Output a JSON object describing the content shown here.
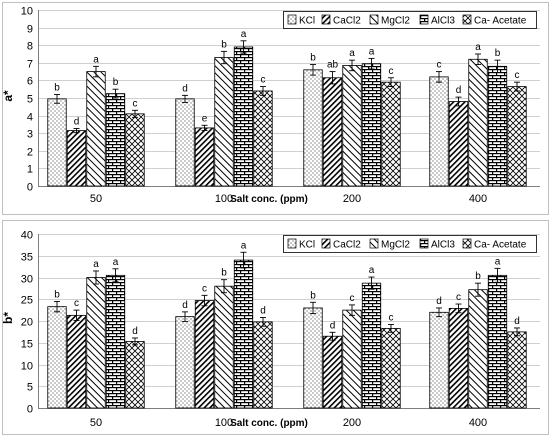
{
  "chart_data": [
    {
      "type": "bar",
      "ylabel": "a*",
      "xlabel": "Salt conc. (ppm)",
      "categories": [
        "50",
        "100",
        "200",
        "400"
      ],
      "ylim": [
        0,
        10
      ],
      "yticks": [
        0,
        1,
        2,
        3,
        4,
        5,
        6,
        7,
        8,
        9,
        10
      ],
      "legend_position": "top-right",
      "series": [
        {
          "name": "KCl",
          "pattern": "dots",
          "values": [
            4.95,
            4.95,
            6.6,
            6.2
          ],
          "errors": [
            0.25,
            0.2,
            0.3,
            0.3
          ],
          "letters": [
            "b",
            "d",
            "b",
            "c"
          ]
        },
        {
          "name": "CaCl2",
          "pattern": "diagonal",
          "values": [
            3.15,
            3.3,
            6.15,
            4.8
          ],
          "errors": [
            0.12,
            0.15,
            0.35,
            0.25
          ],
          "letters": [
            "d",
            "e",
            "ab",
            "d"
          ]
        },
        {
          "name": "MgCl2",
          "pattern": "hatch",
          "values": [
            6.5,
            7.3,
            6.85,
            7.2
          ],
          "errors": [
            0.3,
            0.35,
            0.3,
            0.3
          ],
          "letters": [
            "a",
            "b",
            "a",
            "a"
          ]
        },
        {
          "name": "AlCl3",
          "pattern": "brick",
          "values": [
            5.25,
            7.9,
            6.95,
            6.8
          ],
          "errors": [
            0.25,
            0.35,
            0.3,
            0.35
          ],
          "letters": [
            "b",
            "a",
            "a",
            "b"
          ]
        },
        {
          "name": "Ca- Acetate",
          "pattern": "cross",
          "values": [
            4.1,
            5.4,
            5.9,
            5.65
          ],
          "errors": [
            0.2,
            0.25,
            0.25,
            0.25
          ],
          "letters": [
            "c",
            "c",
            "c",
            "c"
          ]
        }
      ]
    },
    {
      "type": "bar",
      "ylabel": "b*",
      "xlabel": "Salt conc. (ppm)",
      "categories": [
        "50",
        "100",
        "200",
        "400"
      ],
      "ylim": [
        0,
        40
      ],
      "yticks": [
        0,
        5,
        10,
        15,
        20,
        25,
        30,
        35,
        40
      ],
      "legend_position": "top-right",
      "series": [
        {
          "name": "KCl",
          "pattern": "dots",
          "values": [
            23.3,
            21.0,
            23.0,
            22.0
          ],
          "errors": [
            1.2,
            1.1,
            1.3,
            1.0
          ],
          "letters": [
            "b",
            "d",
            "b",
            "d"
          ]
        },
        {
          "name": "CaCl2",
          "pattern": "diagonal",
          "values": [
            21.3,
            24.7,
            16.5,
            22.9
          ],
          "errors": [
            1.2,
            1.2,
            0.9,
            1.0
          ],
          "letters": [
            "c",
            "c",
            "d",
            "c"
          ]
        },
        {
          "name": "MgCl2",
          "pattern": "hatch",
          "values": [
            30.0,
            28.0,
            22.5,
            27.2
          ],
          "errors": [
            1.5,
            1.5,
            1.2,
            1.5
          ],
          "letters": [
            "a",
            "b",
            "c",
            "b"
          ]
        },
        {
          "name": "AlCl3",
          "pattern": "brick",
          "values": [
            30.5,
            34.0,
            28.7,
            30.5
          ],
          "errors": [
            1.5,
            1.8,
            1.4,
            1.6
          ],
          "letters": [
            "a",
            "a",
            "a",
            "a"
          ]
        },
        {
          "name": "Ca- Acetate",
          "pattern": "cross",
          "values": [
            15.3,
            19.8,
            18.3,
            17.5
          ],
          "errors": [
            0.8,
            1.0,
            0.9,
            0.9
          ],
          "letters": [
            "d",
            "d",
            "c",
            "d"
          ]
        }
      ]
    }
  ]
}
